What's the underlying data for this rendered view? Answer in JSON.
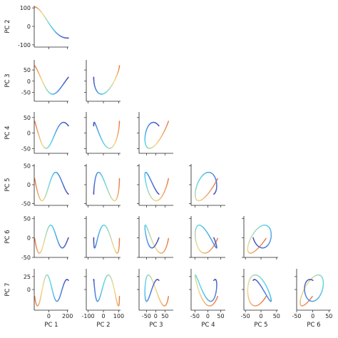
{
  "chart_data": {
    "type": "pairs-line",
    "description_layout": "lower-triangular grid of pairwise principal-component trajectory plots; line color varies along the trajectory",
    "colormap": [
      "#e8774a",
      "#f2d98a",
      "#57d3ea",
      "#4f86e0",
      "#4b4bb4"
    ],
    "components": [
      {
        "label": "PC 1",
        "ticks": [
          0,
          200
        ]
      },
      {
        "label": "PC 2",
        "ticks": [
          -100,
          0,
          100
        ]
      },
      {
        "label": "PC 3",
        "ticks": [
          -50,
          0,
          50
        ]
      },
      {
        "label": "PC 4",
        "ticks": [
          -50,
          0,
          50
        ]
      },
      {
        "label": "PC 5",
        "ticks": [
          -50,
          0,
          50
        ]
      },
      {
        "label": "PC 6",
        "ticks": [
          -50,
          0,
          50
        ]
      },
      {
        "label": "PC 7",
        "ticks": [
          0,
          25
        ]
      }
    ],
    "row_components": [
      "PC 2",
      "PC 3",
      "PC 4",
      "PC 5",
      "PC 6",
      "PC 7"
    ],
    "column_components": [
      "PC 1",
      "PC 2",
      "PC 3",
      "PC 4",
      "PC 5",
      "PC 6"
    ],
    "trajectory": {
      "PC 1": {
        "x_range": [
          -155,
          210
        ]
      },
      "PC 2": {
        "range": [
          -110,
          110
        ]
      },
      "PC 3": {
        "range": [
          -85,
          85
        ]
      },
      "PC 4": {
        "range": [
          -60,
          62
        ]
      },
      "PC 5": {
        "range": [
          -50,
          50
        ]
      },
      "PC 6": {
        "range": [
          -45,
          45
        ]
      },
      "PC 7": {
        "range": [
          -35,
          35
        ]
      }
    },
    "axis_limits": {
      "PC 1": [
        -155,
        210
      ],
      "PC 2": [
        -112,
        112
      ],
      "PC 3": [
        -90,
        95
      ],
      "PC 4": [
        -65,
        68
      ],
      "PC 5": [
        -55,
        55
      ],
      "PC 6": [
        -50,
        56
      ],
      "PC 7": [
        -40,
        40
      ]
    },
    "grid": false,
    "legend": "none"
  }
}
